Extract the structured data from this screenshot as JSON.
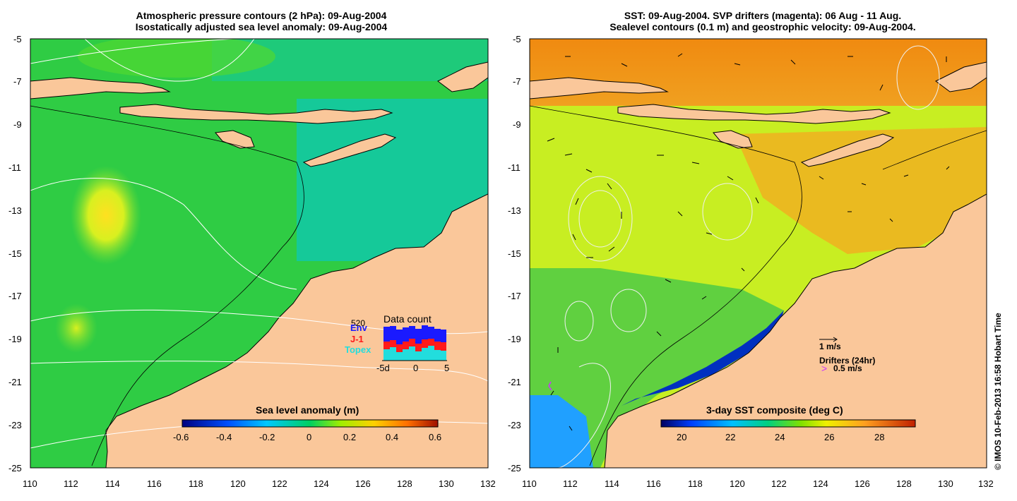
{
  "left_panel": {
    "title_line1": "Atmospheric pressure contours (2 hPa): 09-Aug-2004",
    "title_line2": "Isostatically adjusted sea level anomaly: 09-Aug-2004",
    "colorbar_title": "Sea level anomaly (m)",
    "colorbar_ticks": [
      "-0.6",
      "-0.4",
      "-0.2",
      "0",
      "0.2",
      "0.4",
      "0.6"
    ],
    "data_count": {
      "title": "Data count",
      "max_label": "520",
      "legend": [
        {
          "label": "Env",
          "color": "#1a1aff"
        },
        {
          "label": "J-1",
          "color": "#ff1a1a"
        },
        {
          "label": "Topex",
          "color": "#22dddd"
        }
      ],
      "x_ticks": [
        "-5d",
        "0",
        "5"
      ]
    }
  },
  "right_panel": {
    "title_line1": "SST: 09-Aug-2004. SVP drifters (magenta): 06 Aug - 11 Aug.",
    "title_line2": "Sealevel contours (0.1 m) and geostrophic velocity: 09-Aug-2004.",
    "colorbar_title": "3-day SST composite (deg C)",
    "colorbar_ticks": [
      "20",
      "22",
      "24",
      "26",
      "28"
    ],
    "velocity_scale_label": "1 m/s",
    "drifters_label": "Drifters (24hr)",
    "drifter_scale_label": "0.5 m/s"
  },
  "axes": {
    "x_ticks": [
      "110",
      "112",
      "114",
      "116",
      "118",
      "120",
      "122",
      "124",
      "126",
      "128",
      "130",
      "132"
    ],
    "y_ticks": [
      "-5",
      "-7",
      "-9",
      "-11",
      "-13",
      "-15",
      "-17",
      "-19",
      "-21",
      "-23",
      "-25"
    ]
  },
  "credit": "© IMOS 10-Feb-2013 16:58 Hobart Time",
  "colors": {
    "land": "#fac79a",
    "sla_background": "#2fcc44",
    "sst_background": "#c8ee22"
  }
}
